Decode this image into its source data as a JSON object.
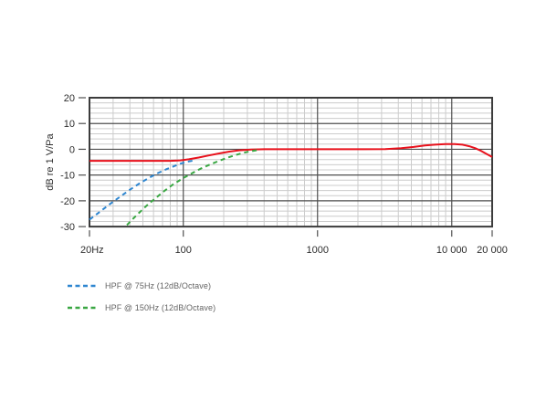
{
  "chart_data": {
    "type": "line",
    "title": "",
    "ylabel": "dB re 1 V/Pa",
    "xlabel": "",
    "x_scale": "log",
    "xlim": [
      20,
      20000
    ],
    "ylim": [
      -30,
      20
    ],
    "y_major_ticks": [
      20,
      10,
      0,
      -10,
      -20,
      -30
    ],
    "y_tick_labels": [
      "20",
      "10",
      "0",
      "-10",
      "-20",
      "-30"
    ],
    "y_minor_step": 2,
    "x_major_ticks": [
      20,
      100,
      1000,
      10000,
      20000
    ],
    "x_tick_labels": [
      "20Hz",
      "100",
      "1000",
      "10 000",
      "20 000"
    ],
    "grid": {
      "minor_on": true,
      "major_color": "#4f4f4f",
      "minor_color": "#cccccc",
      "border_color": "#3c3c3c",
      "tick_color": "#4f4f4f"
    },
    "legend_position": "below-left",
    "legend": [
      {
        "label": "HPF @ 75Hz (12dB/Octave)",
        "color": "#2e86d0",
        "style": "dashed"
      },
      {
        "label": "HPF @ 150Hz (12dB/Octave)",
        "color": "#3aa743",
        "style": "dashed"
      }
    ],
    "series": [
      {
        "id": "main-response",
        "color": "#e8111c",
        "style": "solid",
        "points": [
          [
            20,
            -4.5
          ],
          [
            40,
            -4.5
          ],
          [
            60,
            -4.5
          ],
          [
            80,
            -4.5
          ],
          [
            95,
            -4.3
          ],
          [
            110,
            -3.9
          ],
          [
            130,
            -3.2
          ],
          [
            155,
            -2.4
          ],
          [
            185,
            -1.6
          ],
          [
            220,
            -0.9
          ],
          [
            260,
            -0.4
          ],
          [
            320,
            -0.1
          ],
          [
            400,
            0
          ],
          [
            700,
            0
          ],
          [
            1000,
            0
          ],
          [
            1500,
            0
          ],
          [
            2200,
            0
          ],
          [
            3200,
            0.1
          ],
          [
            4200,
            0.4
          ],
          [
            5200,
            0.9
          ],
          [
            6300,
            1.5
          ],
          [
            7500,
            1.8
          ],
          [
            9000,
            2.0
          ],
          [
            10500,
            2.0
          ],
          [
            12000,
            1.8
          ],
          [
            13500,
            1.2
          ],
          [
            15000,
            0.4
          ],
          [
            16500,
            -0.6
          ],
          [
            18000,
            -1.7
          ],
          [
            20000,
            -3.0
          ]
        ]
      },
      {
        "id": "hpf-75",
        "color": "#2e86d0",
        "style": "dashed",
        "points": [
          [
            20,
            -27.3
          ],
          [
            24,
            -24.2
          ],
          [
            28,
            -21.5
          ],
          [
            33,
            -18.8
          ],
          [
            40,
            -15.7
          ],
          [
            48,
            -13.0
          ],
          [
            56,
            -11.0
          ],
          [
            65,
            -9.2
          ],
          [
            75,
            -7.7
          ],
          [
            85,
            -6.6
          ],
          [
            95,
            -5.6
          ],
          [
            105,
            -4.9
          ],
          [
            118,
            -4.4
          ]
        ]
      },
      {
        "id": "hpf-150",
        "color": "#3aa743",
        "style": "dashed",
        "points": [
          [
            38,
            -29.4
          ],
          [
            45,
            -25.5
          ],
          [
            53,
            -22.0
          ],
          [
            62,
            -19.0
          ],
          [
            72,
            -16.2
          ],
          [
            85,
            -13.4
          ],
          [
            100,
            -11.2
          ],
          [
            115,
            -9.4
          ],
          [
            135,
            -7.5
          ],
          [
            155,
            -6.1
          ],
          [
            180,
            -4.7
          ],
          [
            210,
            -3.4
          ],
          [
            240,
            -2.4
          ],
          [
            270,
            -1.6
          ],
          [
            300,
            -1.0
          ],
          [
            340,
            -0.5
          ],
          [
            360,
            -0.3
          ]
        ]
      }
    ]
  }
}
